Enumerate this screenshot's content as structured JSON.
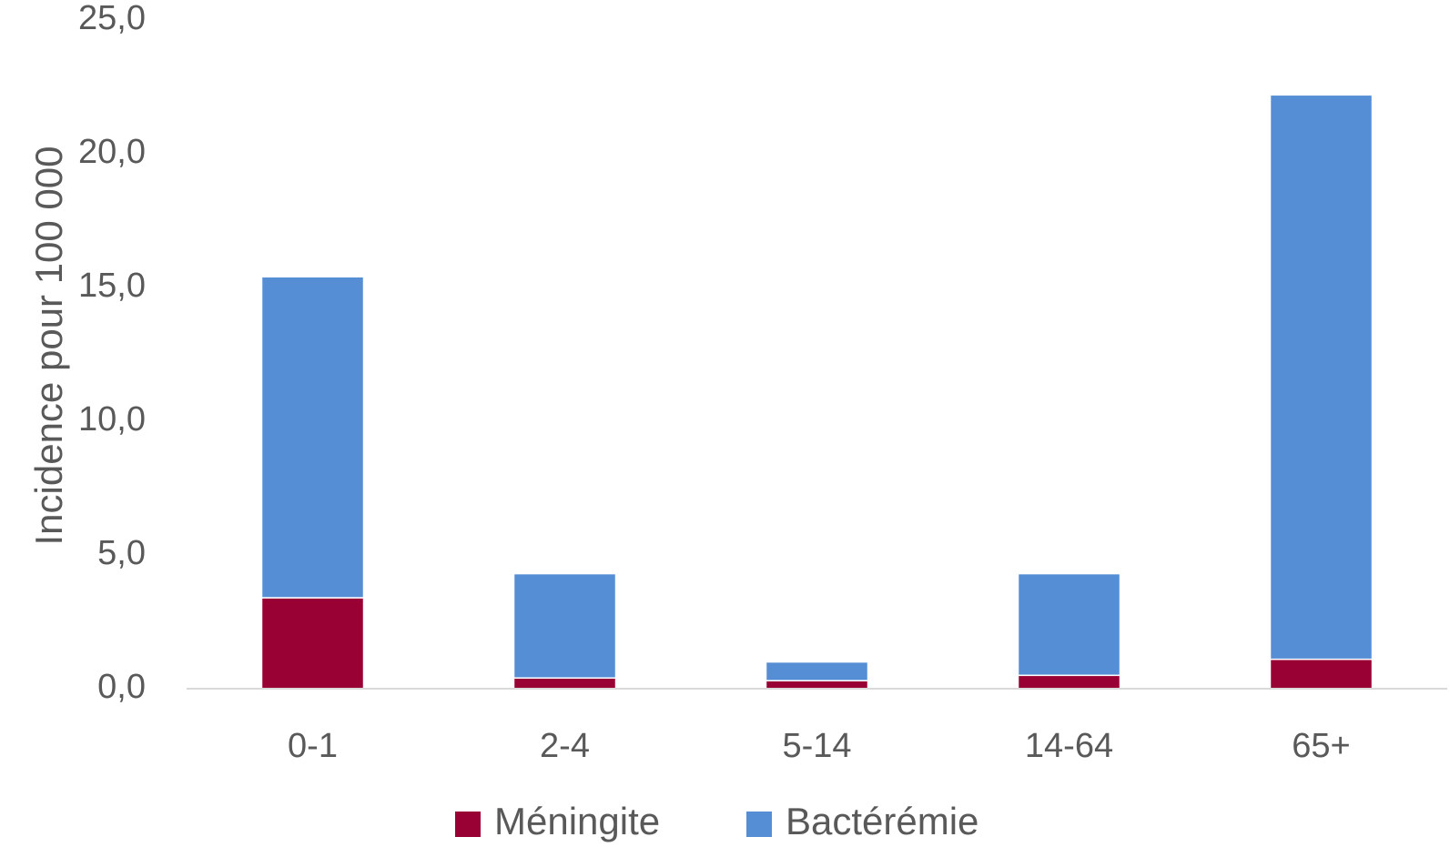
{
  "chart_data": {
    "type": "bar",
    "stacked": true,
    "categories": [
      "0-1",
      "2-4",
      "5-14",
      "14-64",
      "65+"
    ],
    "series": [
      {
        "name": "Méningite",
        "color": "#990033",
        "values": [
          3.4,
          0.4,
          0.3,
          0.5,
          1.1
        ]
      },
      {
        "name": "Bactérémie",
        "color": "#558ED5",
        "values": [
          12.0,
          3.9,
          0.7,
          3.8,
          21.1
        ]
      }
    ],
    "ylabel": "Incidence pour 100 000",
    "xlabel": "",
    "ylim": [
      0,
      25
    ],
    "yticks": [
      "0,0",
      "5,0",
      "10,0",
      "15,0",
      "20,0",
      "25,0"
    ],
    "ytick_values": [
      0,
      5,
      10,
      15,
      20,
      25
    ],
    "legend_position": "bottom",
    "grid": false
  }
}
